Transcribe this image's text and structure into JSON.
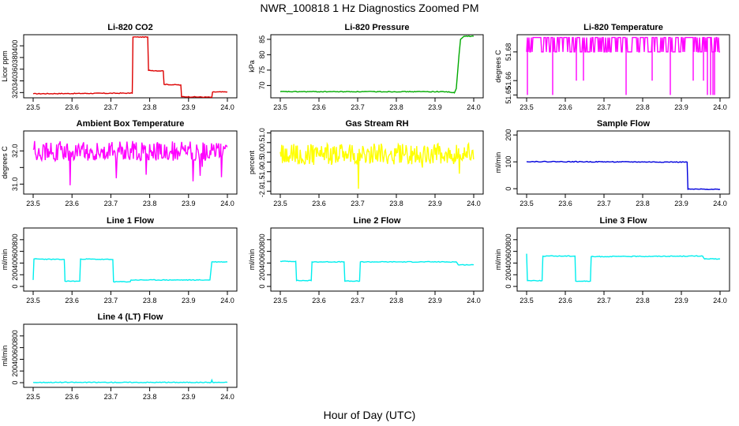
{
  "title": "NWR_100818  1 Hz Diagnostics Zoomed PM",
  "xlabel": "Hour of Day (UTC)",
  "chart_data": [
    {
      "type": "line",
      "title": "Li-820 CO2",
      "ylabel": "Licor ppm",
      "color": "#dd0000",
      "x_ticks": [
        "23.5",
        "23.6",
        "23.7",
        "23.8",
        "23.9",
        "24.0"
      ],
      "y_ticks": [
        320,
        340,
        360,
        380,
        400
      ],
      "xlim": [
        23.5,
        24.0
      ],
      "ylim": [
        311,
        419
      ],
      "points": [
        [
          23.5,
          318
        ],
        [
          23.755,
          319
        ],
        [
          23.757,
          415
        ],
        [
          23.795,
          415
        ],
        [
          23.797,
          358
        ],
        [
          23.835,
          357
        ],
        [
          23.837,
          334
        ],
        [
          23.88,
          333
        ],
        [
          23.882,
          313
        ],
        [
          23.96,
          312
        ],
        [
          23.962,
          321
        ],
        [
          24.0,
          321
        ]
      ]
    },
    {
      "type": "line",
      "title": "Li-820 Pressure",
      "ylabel": "kPa",
      "color": "#00aa00",
      "x_ticks": [
        "23.5",
        "23.6",
        "23.7",
        "23.8",
        "23.9",
        "24.0"
      ],
      "y_ticks": [
        70,
        75,
        80,
        85
      ],
      "xlim": [
        23.5,
        24.0
      ],
      "ylim": [
        66,
        86.5
      ],
      "points": [
        [
          23.5,
          68
        ],
        [
          23.93,
          68
        ],
        [
          23.95,
          67.6
        ],
        [
          23.955,
          69
        ],
        [
          23.962,
          80
        ],
        [
          23.966,
          85
        ],
        [
          23.975,
          86
        ],
        [
          24.0,
          86
        ]
      ]
    },
    {
      "type": "line",
      "title": "Li-820 Temperature",
      "ylabel": "degrees C",
      "color": "#ff00ff",
      "x_ticks": [
        "23.5",
        "23.6",
        "23.7",
        "23.8",
        "23.9",
        "24.0"
      ],
      "y_ticks": [
        51.65,
        51.66,
        51.68
      ],
      "y_tick_labels": [
        "51.65",
        "51.66",
        "51.68"
      ],
      "xlim": [
        23.5,
        24.0
      ],
      "ylim": [
        51.648,
        51.692
      ],
      "bands": [
        51.68,
        51.69
      ],
      "dips": [
        51.66,
        51.65
      ],
      "points": []
    },
    {
      "type": "line",
      "title": "Ambient Box Temperature",
      "ylabel": "degrees C",
      "color": "#ff00ff",
      "x_ticks": [
        "23.5",
        "23.6",
        "23.7",
        "23.8",
        "23.9",
        "24.0"
      ],
      "y_ticks": [
        31.0,
        31.5,
        32.0
      ],
      "y_tick_labels": [
        "31.0",
        "",
        "32.0"
      ],
      "xlim": [
        23.5,
        24.0
      ],
      "ylim": [
        30.7,
        32.6
      ],
      "noise_mean": 32.0,
      "noise_amp": 0.3,
      "points": []
    },
    {
      "type": "line",
      "title": "Gas Stream RH",
      "ylabel": "percent",
      "color": "#ffff00",
      "x_ticks": [
        "23.5",
        "23.6",
        "23.7",
        "23.8",
        "23.9",
        "24.0"
      ],
      "y_ticks": [
        -2.0,
        -1.5,
        -1.0,
        -0.5,
        0.0,
        0.5,
        1.0
      ],
      "y_tick_labels": [
        "-2.0",
        "-1.5",
        "-1.0",
        "-0.5",
        "0.0",
        "0.5",
        "1.0"
      ],
      "xlim": [
        23.5,
        24.0
      ],
      "ylim": [
        -2.15,
        1.1
      ],
      "noise_mean": -0.1,
      "noise_amp": 0.55,
      "points": []
    },
    {
      "type": "line",
      "title": "Sample Flow",
      "ylabel": "ml/min",
      "color": "#0000dd",
      "x_ticks": [
        "23.5",
        "23.6",
        "23.7",
        "23.8",
        "23.9",
        "24.0"
      ],
      "y_ticks": [
        0,
        100,
        200
      ],
      "xlim": [
        23.5,
        24.0
      ],
      "ylim": [
        -20,
        215
      ],
      "points": [
        [
          23.5,
          101
        ],
        [
          23.915,
          99
        ],
        [
          23.917,
          -2
        ],
        [
          24.0,
          -2
        ]
      ]
    },
    {
      "type": "line",
      "title": "Line 1 Flow",
      "ylabel": "ml/min",
      "color": "#00eeee",
      "x_ticks": [
        "23.5",
        "23.6",
        "23.7",
        "23.8",
        "23.9",
        "24.0"
      ],
      "y_ticks": [
        0,
        200,
        400,
        600,
        800
      ],
      "xlim": [
        23.5,
        24.0
      ],
      "ylim": [
        -80,
        1000
      ],
      "points": [
        [
          23.5,
          110
        ],
        [
          23.502,
          470
        ],
        [
          23.58,
          460
        ],
        [
          23.582,
          90
        ],
        [
          23.62,
          90
        ],
        [
          23.622,
          470
        ],
        [
          23.705,
          460
        ],
        [
          23.707,
          80
        ],
        [
          23.75,
          80
        ],
        [
          23.752,
          110
        ],
        [
          23.955,
          110
        ],
        [
          23.96,
          420
        ],
        [
          24.0,
          420
        ]
      ]
    },
    {
      "type": "line",
      "title": "Line 2 Flow",
      "ylabel": "ml/min",
      "color": "#00eeee",
      "x_ticks": [
        "23.5",
        "23.6",
        "23.7",
        "23.8",
        "23.9",
        "24.0"
      ],
      "y_ticks": [
        0,
        200,
        400,
        600,
        800
      ],
      "xlim": [
        23.5,
        24.0
      ],
      "ylim": [
        -80,
        1000
      ],
      "points": [
        [
          23.5,
          430
        ],
        [
          23.54,
          430
        ],
        [
          23.542,
          100
        ],
        [
          23.58,
          100
        ],
        [
          23.582,
          420
        ],
        [
          23.665,
          420
        ],
        [
          23.667,
          90
        ],
        [
          23.705,
          90
        ],
        [
          23.707,
          420
        ],
        [
          23.955,
          420
        ],
        [
          23.96,
          370
        ],
        [
          24.0,
          370
        ]
      ]
    },
    {
      "type": "line",
      "title": "Line 3 Flow",
      "ylabel": "ml/min",
      "color": "#00eeee",
      "x_ticks": [
        "23.5",
        "23.6",
        "23.7",
        "23.8",
        "23.9",
        "24.0"
      ],
      "y_ticks": [
        0,
        200,
        400,
        600,
        800
      ],
      "xlim": [
        23.5,
        24.0
      ],
      "ylim": [
        -80,
        1000
      ],
      "points": [
        [
          23.5,
          560
        ],
        [
          23.502,
          100
        ],
        [
          23.54,
          100
        ],
        [
          23.542,
          520
        ],
        [
          23.625,
          520
        ],
        [
          23.627,
          90
        ],
        [
          23.665,
          90
        ],
        [
          23.667,
          510
        ],
        [
          23.955,
          520
        ],
        [
          23.96,
          470
        ],
        [
          24.0,
          470
        ]
      ]
    },
    {
      "type": "line",
      "title": "Line 4 (LT) Flow",
      "ylabel": "ml/min",
      "color": "#00eeee",
      "x_ticks": [
        "23.5",
        "23.6",
        "23.7",
        "23.8",
        "23.9",
        "24.0"
      ],
      "y_ticks": [
        0,
        200,
        400,
        600,
        800
      ],
      "xlim": [
        23.5,
        24.0
      ],
      "ylim": [
        -80,
        1000
      ],
      "points": [
        [
          23.5,
          5
        ],
        [
          23.958,
          5
        ],
        [
          23.96,
          45
        ],
        [
          23.962,
          5
        ],
        [
          24.0,
          5
        ]
      ]
    }
  ]
}
